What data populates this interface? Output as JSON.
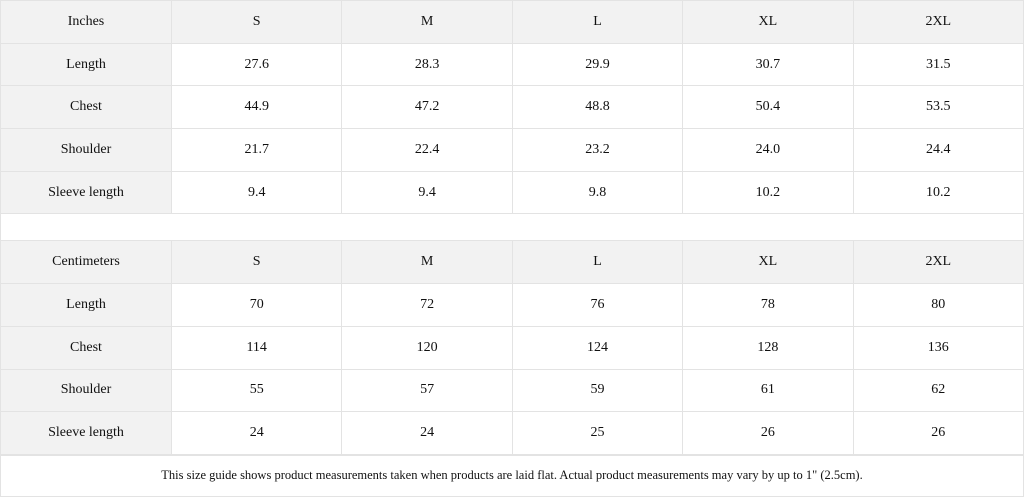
{
  "tables": [
    {
      "unit": "Inches",
      "sizes": [
        "S",
        "M",
        "L",
        "XL",
        "2XL"
      ],
      "rows": [
        {
          "label": "Length",
          "values": [
            "27.6",
            "28.3",
            "29.9",
            "30.7",
            "31.5"
          ]
        },
        {
          "label": "Chest",
          "values": [
            "44.9",
            "47.2",
            "48.8",
            "50.4",
            "53.5"
          ]
        },
        {
          "label": "Shoulder",
          "values": [
            "21.7",
            "22.4",
            "23.2",
            "24.0",
            "24.4"
          ]
        },
        {
          "label": "Sleeve length",
          "values": [
            "9.4",
            "9.4",
            "9.8",
            "10.2",
            "10.2"
          ]
        }
      ]
    },
    {
      "unit": "Centimeters",
      "sizes": [
        "S",
        "M",
        "L",
        "XL",
        "2XL"
      ],
      "rows": [
        {
          "label": "Length",
          "values": [
            "70",
            "72",
            "76",
            "78",
            "80"
          ]
        },
        {
          "label": "Chest",
          "values": [
            "114",
            "120",
            "124",
            "128",
            "136"
          ]
        },
        {
          "label": "Shoulder",
          "values": [
            "55",
            "57",
            "59",
            "61",
            "62"
          ]
        },
        {
          "label": "Sleeve length",
          "values": [
            "24",
            "24",
            "25",
            "26",
            "26"
          ]
        }
      ]
    }
  ],
  "footer_note": "This size guide shows product measurements taken when products are laid flat.  Actual product measurements may vary by up to 1\" (2.5cm)."
}
